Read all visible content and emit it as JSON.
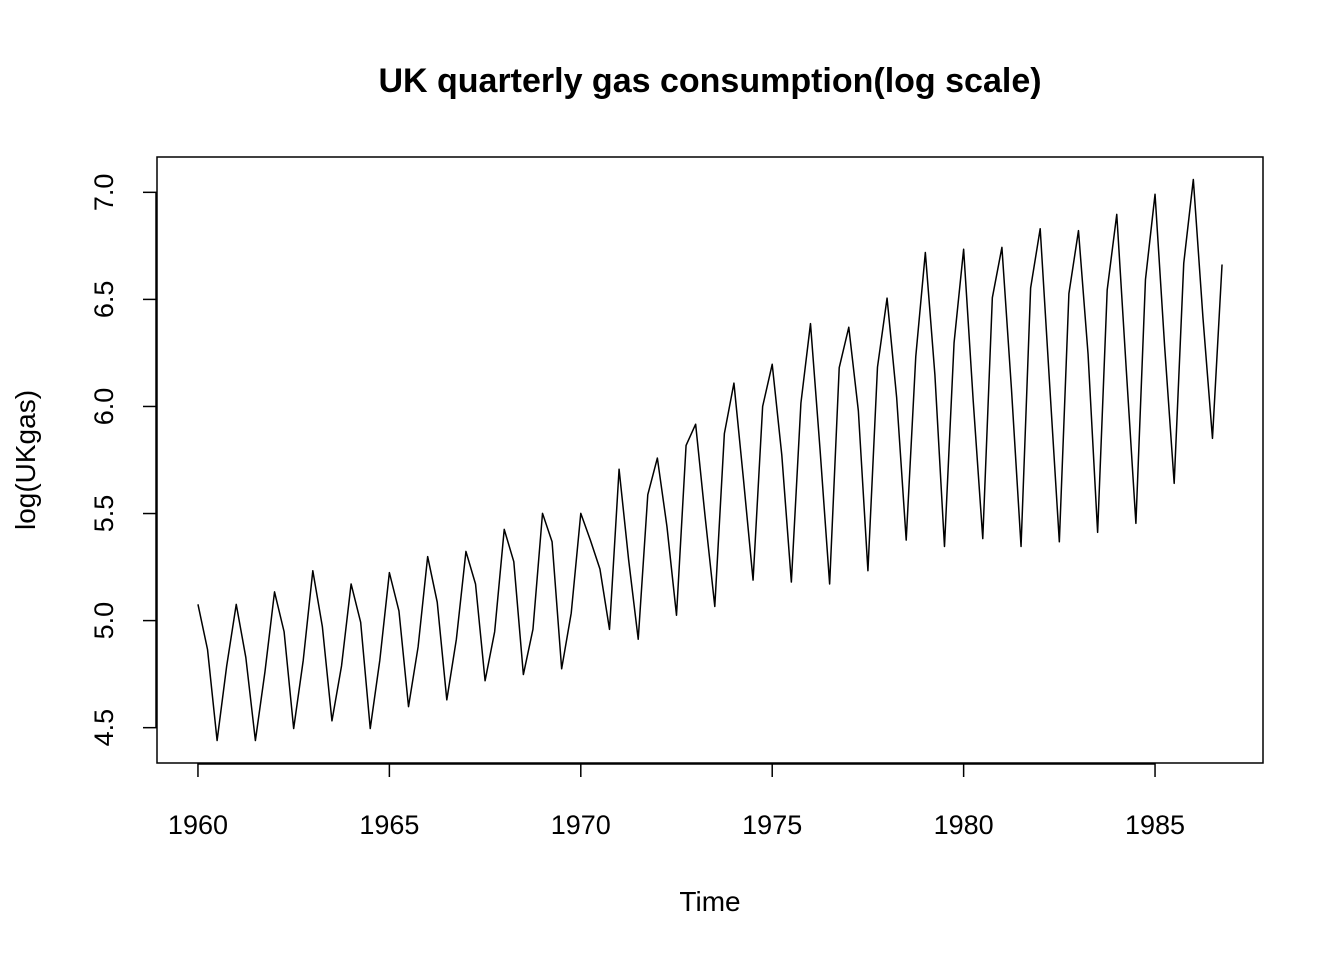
{
  "chart_data": {
    "type": "line",
    "title": "UK quarterly gas consumption(log scale)",
    "x_label": "Time",
    "y_label": "log(UKgas)",
    "x": [
      1960,
      1960.25,
      1960.5,
      1960.75,
      1961,
      1961.25,
      1961.5,
      1961.75,
      1962,
      1962.25,
      1962.5,
      1962.75,
      1963,
      1963.25,
      1963.5,
      1963.75,
      1964,
      1964.25,
      1964.5,
      1964.75,
      1965,
      1965.25,
      1965.5,
      1965.75,
      1966,
      1966.25,
      1966.5,
      1966.75,
      1967,
      1967.25,
      1967.5,
      1967.75,
      1968,
      1968.25,
      1968.5,
      1968.75,
      1969,
      1969.25,
      1969.5,
      1969.75,
      1970,
      1970.25,
      1970.5,
      1970.75,
      1971,
      1971.25,
      1971.5,
      1971.75,
      1972,
      1972.25,
      1972.5,
      1972.75,
      1973,
      1973.25,
      1973.5,
      1973.75,
      1974,
      1974.25,
      1974.5,
      1974.75,
      1975,
      1975.25,
      1975.5,
      1975.75,
      1976,
      1976.25,
      1976.5,
      1976.75,
      1977,
      1977.25,
      1977.5,
      1977.75,
      1978,
      1978.25,
      1978.5,
      1978.75,
      1979,
      1979.25,
      1979.5,
      1979.75,
      1980,
      1980.25,
      1980.5,
      1980.75,
      1981,
      1981.25,
      1981.5,
      1981.75,
      1982,
      1982.25,
      1982.5,
      1982.75,
      1983,
      1983.25,
      1983.5,
      1983.75,
      1984,
      1984.25,
      1984.5,
      1984.75,
      1985,
      1985.25,
      1985.5,
      1985.75,
      1986,
      1986.25,
      1986.5,
      1986.75
    ],
    "values": [
      5.076,
      4.865,
      4.44,
      4.788,
      5.076,
      4.828,
      4.44,
      4.761,
      5.134,
      4.948,
      4.496,
      4.815,
      5.233,
      4.971,
      4.532,
      4.788,
      5.171,
      4.992,
      4.496,
      4.815,
      5.224,
      5.045,
      4.598,
      4.877,
      5.299,
      5.086,
      4.63,
      4.913,
      5.323,
      5.171,
      4.719,
      4.948,
      5.426,
      5.275,
      4.748,
      4.959,
      5.501,
      5.368,
      4.775,
      5.035,
      5.501,
      5.376,
      5.241,
      4.959,
      5.707,
      5.283,
      4.913,
      5.588,
      5.759,
      5.44,
      5.025,
      5.818,
      5.917,
      5.481,
      5.066,
      5.873,
      6.109,
      5.658,
      5.189,
      6.0,
      6.197,
      5.774,
      5.18,
      6.016,
      6.387,
      5.798,
      5.171,
      6.181,
      6.37,
      5.98,
      5.233,
      6.184,
      6.506,
      6.043,
      5.376,
      6.233,
      6.719,
      6.147,
      5.346,
      6.297,
      6.734,
      6.027,
      5.383,
      6.508,
      6.743,
      6.08,
      5.346,
      6.553,
      6.83,
      6.094,
      5.368,
      6.527,
      6.821,
      6.245,
      5.412,
      6.544,
      6.897,
      6.168,
      5.454,
      6.593,
      6.991,
      6.282,
      5.641,
      6.669,
      7.06,
      6.418,
      5.851,
      6.663
    ],
    "color": "#000000",
    "xlim": [
      1958.93,
      1987.82
    ],
    "ylim": [
      4.335,
      7.165
    ],
    "xticks": [
      1960,
      1965,
      1970,
      1975,
      1980,
      1985
    ],
    "yticks": [
      4.5,
      {
        "value": 5,
        "label": "5.0"
      },
      5.5,
      {
        "value": 6,
        "label": "6.0"
      },
      6.5,
      {
        "value": 7,
        "label": "7.0"
      }
    ]
  }
}
